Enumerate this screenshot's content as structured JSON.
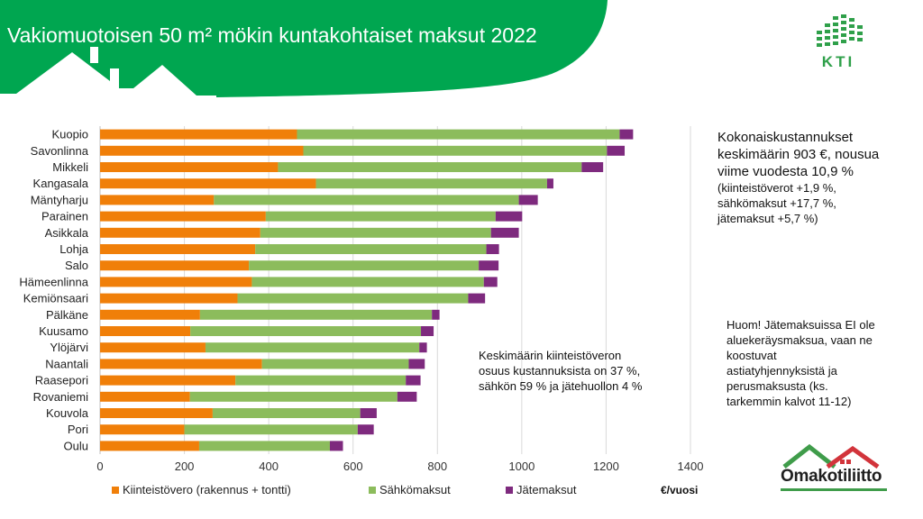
{
  "page": {
    "title": "Vakiomuotoisen 50 m² mökin kuntakohtaiset maksut 2022",
    "kti_logo_text": "KTI",
    "omakotiliitto_logo_text": "Omakotiliitto"
  },
  "notes": {
    "summary_lines": [
      "Kokonaiskustannukset",
      "keskimäärin 903 €, nousua",
      "viime vuodesta 10,9 %"
    ],
    "summary_sub_lines": [
      "(kiinteistöverot +1,9 %,",
      "sähkömaksut +17,7 %,",
      "jätemaksut +5,7 %)"
    ],
    "share_lines": [
      "Keskimäärin kiinteistöveron",
      "osuus kustannuksista on 37 %,",
      "sähkön 59 % ja jätehuollon 4 %"
    ],
    "waste_lines": [
      "Huom! Jätemaksuissa EI ole",
      "aluekeräysmaksua, vaan ne",
      "koostuvat",
      "astiatyhjennyksistä ja",
      "perusmaksusta (ks.",
      "tarkemmin kalvot 11-12)"
    ]
  },
  "chart_data": {
    "type": "bar",
    "orientation": "horizontal",
    "stacked": true,
    "categories": [
      "Kuopio",
      "Savonlinna",
      "Mikkeli",
      "Kangasala",
      "Mäntyharju",
      "Parainen",
      "Asikkala",
      "Lohja",
      "Salo",
      "Hämeenlinna",
      "Kemiönsaari",
      "Pälkäne",
      "Kuusamo",
      "Ylöjärvi",
      "Naantali",
      "Raasepori",
      "Rovaniemi",
      "Kouvola",
      "Pori",
      "Oulu"
    ],
    "series": [
      {
        "name": "Kiinteistövero (rakennus + tontti)",
        "color": "#f07f09",
        "values": [
          467,
          482,
          422,
          512,
          270,
          393,
          380,
          368,
          353,
          360,
          326,
          237,
          214,
          250,
          384,
          321,
          213,
          267,
          200,
          235
        ]
      },
      {
        "name": "Sähkömaksut",
        "color": "#8cbc5c",
        "values": [
          765,
          720,
          720,
          548,
          723,
          545,
          547,
          548,
          545,
          550,
          547,
          550,
          547,
          507,
          348,
          404,
          492,
          350,
          411,
          310
        ]
      },
      {
        "name": "Jätemaksut",
        "color": "#7e2a7e",
        "values": [
          32,
          42,
          51,
          15,
          45,
          63,
          66,
          30,
          47,
          32,
          40,
          18,
          30,
          18,
          38,
          35,
          46,
          39,
          38,
          31
        ]
      }
    ],
    "xlim": [
      0,
      1400
    ],
    "xticks": [
      0,
      200,
      400,
      600,
      800,
      1000,
      1200,
      1400
    ],
    "xlabel": "€/vuosi",
    "grid": "vertical",
    "legend": "bottom"
  }
}
